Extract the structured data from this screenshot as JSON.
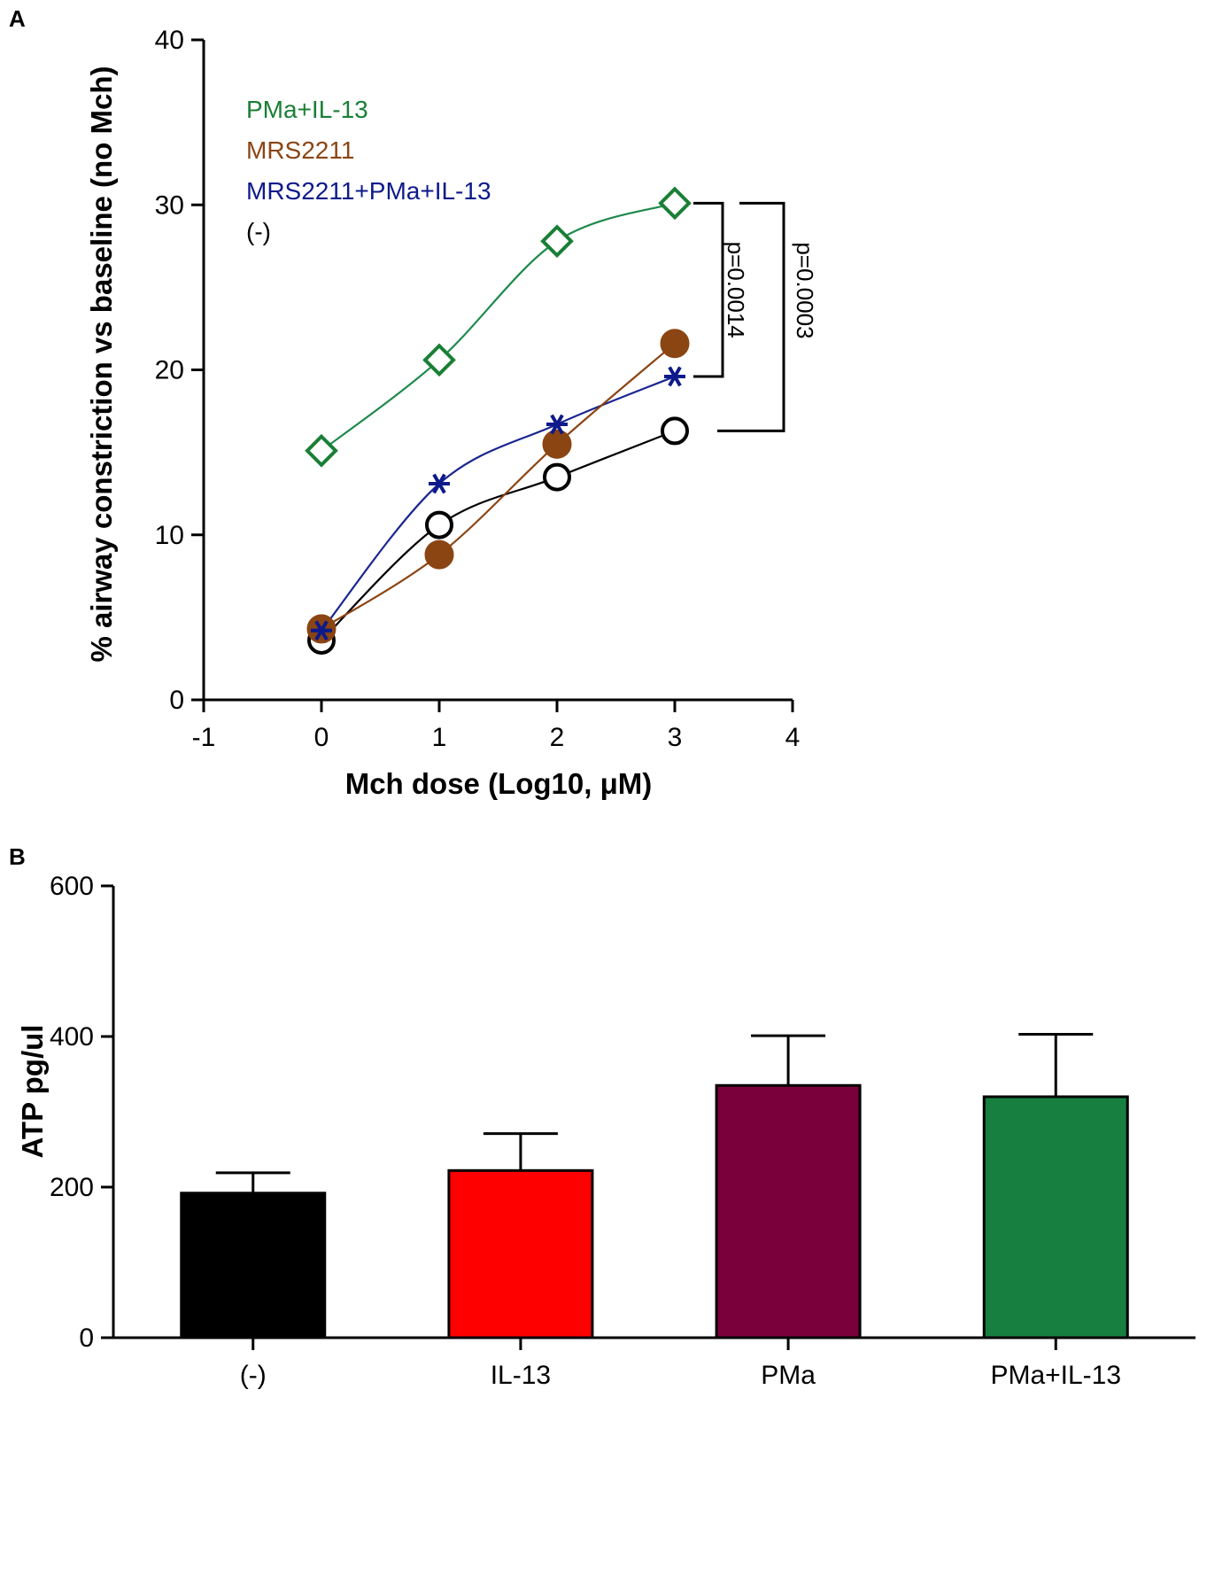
{
  "panels": {
    "a": "A",
    "b": "B"
  },
  "chart_data": [
    {
      "type": "line",
      "panel": "A",
      "xlabel": "Mch dose (Log10, μM)",
      "ylabel": "% airway constriction vs baseline (no Mch)",
      "xlim": [
        -1,
        4
      ],
      "ylim": [
        0,
        40
      ],
      "xticks": [
        -1,
        0,
        1,
        2,
        3,
        4
      ],
      "yticks": [
        0,
        10,
        20,
        30,
        40
      ],
      "x": [
        0,
        1,
        2,
        3
      ],
      "series": [
        {
          "name": "PMa+IL-13",
          "values": [
            15.1,
            20.6,
            27.8,
            30.1
          ],
          "color": "#1a7f36",
          "marker": "diamond-open",
          "curve_color": "#1e8a4c"
        },
        {
          "name": "MRS2211",
          "values": [
            4.3,
            8.8,
            15.5,
            21.6
          ],
          "color": "#8b4513",
          "marker": "circle-filled",
          "curve_color": "#8b4513"
        },
        {
          "name": "MRS2211+PMa+IL-13",
          "values": [
            4.2,
            13.1,
            16.7,
            19.6
          ],
          "color": "#0d1a8a",
          "marker": "asterisk",
          "curve_color": "#1a2590"
        },
        {
          "name": "(-)",
          "values": [
            3.6,
            10.6,
            13.5,
            16.3
          ],
          "color": "#000000",
          "marker": "circle-open",
          "curve_color": "#000000"
        }
      ],
      "annotations": [
        {
          "text": "p=0.0014",
          "from": 30.1,
          "to": 19.6
        },
        {
          "text": "p=0.0003",
          "from": 30.1,
          "to": 16.3
        }
      ]
    },
    {
      "type": "bar",
      "panel": "B",
      "ylabel": "ATP pg/ul",
      "ylim": [
        0,
        600
      ],
      "yticks": [
        0,
        200,
        400,
        600
      ],
      "categories": [
        "(-)",
        "IL-13",
        "PMa",
        "PMa+IL-13"
      ],
      "values": [
        192,
        222,
        335,
        320
      ],
      "errors": [
        27,
        49,
        66,
        83
      ],
      "colors": [
        "#000000",
        "#ff0000",
        "#7a003c",
        "#178040"
      ]
    }
  ]
}
